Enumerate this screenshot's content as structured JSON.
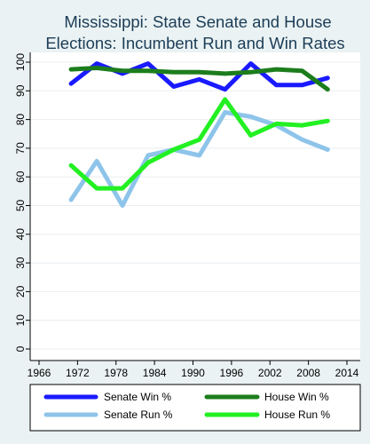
{
  "chart_data": {
    "type": "line",
    "title_lines": [
      "Mississippi: State Senate and House",
      "Elections: Incumbent Run and Win Rates"
    ],
    "xlabel": "",
    "ylabel": "",
    "xlim": [
      1965,
      2015
    ],
    "ylim": [
      0,
      100
    ],
    "x_ticks": [
      1966,
      1972,
      1978,
      1984,
      1990,
      1996,
      2002,
      2008,
      2014
    ],
    "y_ticks": [
      0,
      10,
      20,
      30,
      40,
      50,
      60,
      70,
      80,
      90,
      100
    ],
    "grid": true,
    "legend_position": "bottom",
    "series": [
      {
        "name": "Senate Win %",
        "color": "#1a1aff",
        "points": [
          [
            1971,
            92.5
          ],
          [
            1975,
            99.5
          ],
          [
            1979,
            96
          ],
          [
            1983,
            99.5
          ],
          [
            1987,
            91.5
          ],
          [
            1991,
            94
          ],
          [
            1995,
            90.5
          ],
          [
            1999,
            99.5
          ],
          [
            2003,
            92
          ],
          [
            2007,
            92
          ],
          [
            2011,
            94.5
          ]
        ]
      },
      {
        "name": "House Win %",
        "color": "#1c7d1c",
        "points": [
          [
            1971,
            97.5
          ],
          [
            1975,
            98
          ],
          [
            1979,
            97
          ],
          [
            1983,
            97
          ],
          [
            1987,
            96.5
          ],
          [
            1991,
            96.5
          ],
          [
            1995,
            96
          ],
          [
            1999,
            96.5
          ],
          [
            2003,
            97.5
          ],
          [
            2007,
            97
          ],
          [
            2011,
            90.5
          ]
        ]
      },
      {
        "name": "Senate Run %",
        "color": "#8ec4ea",
        "points": [
          [
            1971,
            52
          ],
          [
            1975,
            65.5
          ],
          [
            1979,
            50
          ],
          [
            1983,
            67.5
          ],
          [
            1987,
            69.5
          ],
          [
            1991,
            67.5
          ],
          [
            1995,
            82.5
          ],
          [
            1999,
            81
          ],
          [
            2003,
            78
          ],
          [
            2007,
            73
          ],
          [
            2011,
            69.5
          ]
        ]
      },
      {
        "name": "House Run %",
        "color": "#22f022",
        "points": [
          [
            1971,
            64
          ],
          [
            1975,
            56
          ],
          [
            1979,
            56
          ],
          [
            1983,
            65
          ],
          [
            1987,
            69.5
          ],
          [
            1991,
            73
          ],
          [
            1995,
            87
          ],
          [
            1999,
            74.5
          ],
          [
            2003,
            78.5
          ],
          [
            2007,
            78
          ],
          [
            2011,
            79.5
          ]
        ]
      }
    ]
  }
}
